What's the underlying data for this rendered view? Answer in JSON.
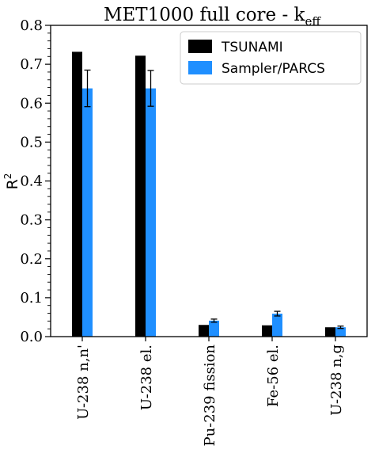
{
  "chart_data": {
    "type": "bar",
    "title_main": "MET1000 full core - k",
    "title_sub": "eff",
    "ylabel_main": "R",
    "ylabel_sup": "2",
    "categories": [
      "U-238 n,n'",
      "U-238 el.",
      "Pu-239 fission",
      "Fe-56 el.",
      "U-238 n,g"
    ],
    "ylim": [
      0,
      0.8
    ],
    "yticks": [
      "0.0",
      "0.1",
      "0.2",
      "0.3",
      "0.4",
      "0.5",
      "0.6",
      "0.7",
      "0.8"
    ],
    "grid": false,
    "legend_position": "top-right",
    "series": [
      {
        "name": "TSUNAMI",
        "color": "#000000",
        "values": [
          0.732,
          0.722,
          0.03,
          0.029,
          0.024
        ]
      },
      {
        "name": "Sampler/PARCS",
        "color": "#1f8fff",
        "values": [
          0.638,
          0.638,
          0.041,
          0.059,
          0.024
        ],
        "errors": [
          0.047,
          0.046,
          0.004,
          0.006,
          0.003
        ]
      }
    ]
  }
}
